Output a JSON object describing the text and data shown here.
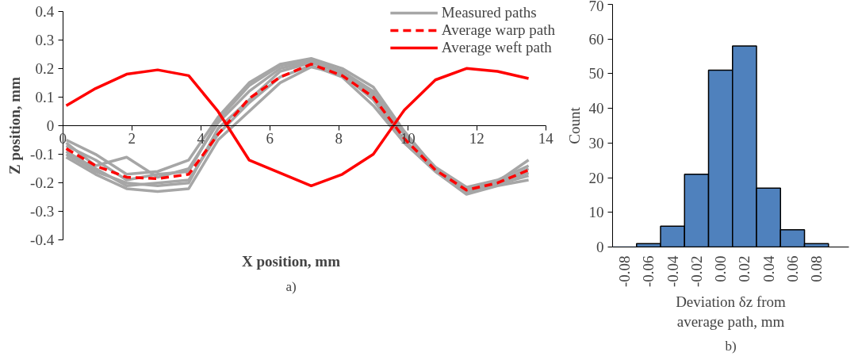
{
  "chart_data": [
    {
      "type": "line",
      "xlabel": "X position, mm",
      "ylabel": "Z position, mm",
      "xlim": [
        0,
        14
      ],
      "ylim": [
        -0.4,
        0.4
      ],
      "xticks": [
        0,
        2,
        4,
        6,
        8,
        10,
        12,
        14
      ],
      "yticks": [
        -0.4,
        -0.3,
        -0.2,
        -0.1,
        0,
        0.1,
        0.2,
        0.3,
        0.4
      ],
      "grid": false,
      "legend": "top right",
      "marker": "none",
      "x": [
        0.1,
        0.95,
        1.85,
        2.75,
        3.65,
        4.5,
        5.4,
        6.3,
        7.2,
        8.1,
        9.0,
        9.9,
        10.8,
        11.7,
        12.6,
        13.5
      ],
      "series": [
        {
          "name": "Measured paths",
          "color": "#a6a6a6",
          "line_style": "solid",
          "values": [
            -0.05,
            -0.1,
            -0.17,
            -0.16,
            -0.12,
            0.03,
            0.15,
            0.215,
            0.235,
            0.2,
            0.135,
            -0.02,
            -0.15,
            -0.22,
            -0.195,
            -0.12
          ]
        },
        {
          "color": "#a6a6a6",
          "line_style": "solid",
          "values": [
            -0.11,
            -0.17,
            -0.22,
            -0.23,
            -0.22,
            -0.05,
            0.05,
            0.15,
            0.205,
            0.18,
            0.09,
            -0.06,
            -0.16,
            -0.24,
            -0.21,
            -0.19
          ]
        },
        {
          "color": "#a6a6a6",
          "line_style": "solid",
          "values": [
            -0.06,
            -0.14,
            -0.11,
            -0.18,
            -0.15,
            0.01,
            0.12,
            0.2,
            0.225,
            0.19,
            0.11,
            -0.03,
            -0.145,
            -0.215,
            -0.19,
            -0.14
          ]
        },
        {
          "color": "#a6a6a6",
          "line_style": "solid",
          "values": [
            -0.09,
            -0.15,
            -0.21,
            -0.2,
            -0.19,
            -0.03,
            0.08,
            0.17,
            0.21,
            0.17,
            0.07,
            -0.06,
            -0.16,
            -0.235,
            -0.205,
            -0.175
          ]
        },
        {
          "color": "#a6a6a6",
          "line_style": "solid",
          "values": [
            -0.1,
            -0.16,
            -0.2,
            -0.21,
            -0.2,
            -0.01,
            0.09,
            0.19,
            0.22,
            0.185,
            0.1,
            -0.05,
            -0.155,
            -0.23,
            -0.2,
            -0.165
          ]
        },
        {
          "color": "#a6a6a6",
          "line_style": "solid",
          "values": [
            -0.07,
            -0.12,
            -0.19,
            -0.17,
            -0.16,
            0.02,
            0.14,
            0.21,
            0.23,
            0.19,
            0.12,
            -0.03,
            -0.15,
            -0.22,
            -0.2,
            -0.15
          ]
        },
        {
          "name": "Average warp path",
          "color": "#ff0000",
          "line_style": "dashed",
          "values": [
            -0.08,
            -0.14,
            -0.18,
            -0.185,
            -0.17,
            -0.03,
            0.095,
            0.17,
            0.215,
            0.175,
            0.1,
            -0.045,
            -0.155,
            -0.225,
            -0.2,
            -0.155
          ]
        },
        {
          "name": "Average weft path",
          "color": "#ff0000",
          "line_style": "solid",
          "values": [
            0.07,
            0.13,
            0.18,
            0.195,
            0.175,
            0.05,
            -0.12,
            -0.165,
            -0.21,
            -0.17,
            -0.1,
            0.055,
            0.16,
            0.2,
            0.19,
            0.165
          ]
        }
      ],
      "annotations": [
        "a)"
      ]
    },
    {
      "type": "bar",
      "xlabel": "Deviation δz from average path, mm",
      "ylabel": "Count",
      "ylim": [
        0,
        70
      ],
      "yticks": [
        0,
        10,
        20,
        30,
        40,
        50,
        60,
        70
      ],
      "grid": false,
      "categories": [
        "-0.08",
        "-0.06",
        "-0.04",
        "-0.02",
        "0.00",
        "0.02",
        "0.04",
        "0.06",
        "0.08"
      ],
      "values": [
        0,
        1,
        6,
        21,
        51,
        58,
        17,
        5,
        1
      ],
      "color": "#4f81bd",
      "annotations": [
        "b)"
      ]
    }
  ]
}
